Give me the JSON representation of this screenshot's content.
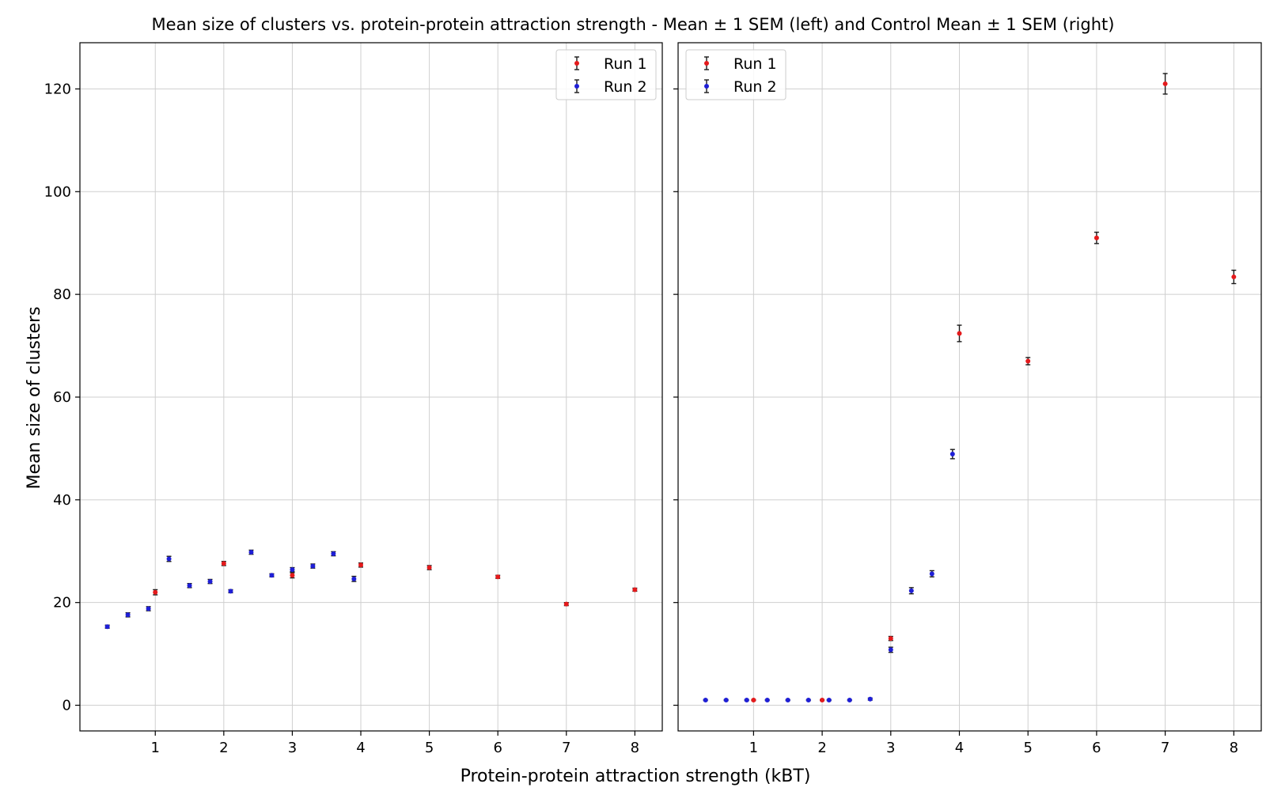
{
  "figure": {
    "title": "Mean size of clusters vs. protein-protein attraction strength - Mean ± 1 SEM (left) and Control Mean ± 1 SEM (right)",
    "xlabel": "Protein-protein attraction strength (kBT)",
    "ylabel": "Mean size of clusters"
  },
  "chart_data": [
    {
      "type": "scatter",
      "panel": "left",
      "title": "",
      "xlim": [
        -0.1,
        8.4
      ],
      "ylim": [
        -5,
        129
      ],
      "xticks": [
        1,
        2,
        3,
        4,
        5,
        6,
        7,
        8
      ],
      "yticks": [
        0,
        20,
        40,
        60,
        80,
        100,
        120
      ],
      "grid": true,
      "error_bars": "± 1 SEM",
      "legend": {
        "placement": "top-right",
        "entries": [
          "Run 1",
          "Run 2"
        ]
      },
      "series": [
        {
          "name": "Run 1",
          "color": "#e41a1c",
          "x": [
            1,
            2,
            3,
            4,
            5,
            6,
            7,
            8
          ],
          "y": [
            22.0,
            27.6,
            25.3,
            27.3,
            26.8,
            25.0,
            19.7,
            22.5
          ],
          "err": [
            0.5,
            0.4,
            0.5,
            0.4,
            0.4,
            0.3,
            0.3,
            0.3
          ]
        },
        {
          "name": "Run 2",
          "color": "#1f1fd6",
          "x": [
            0.3,
            0.6,
            0.9,
            1.2,
            1.5,
            1.8,
            2.1,
            2.4,
            2.7,
            3.0,
            3.3,
            3.6,
            3.9
          ],
          "y": [
            15.3,
            17.6,
            18.8,
            28.5,
            23.3,
            24.1,
            22.2,
            29.8,
            25.3,
            26.4,
            27.1,
            29.5,
            24.6
          ],
          "err": [
            0.3,
            0.4,
            0.4,
            0.5,
            0.4,
            0.4,
            0.3,
            0.4,
            0.3,
            0.4,
            0.4,
            0.4,
            0.5
          ]
        }
      ]
    },
    {
      "type": "scatter",
      "panel": "right",
      "title": "",
      "xlim": [
        -0.1,
        8.4
      ],
      "ylim": [
        -5,
        129
      ],
      "xticks": [
        1,
        2,
        3,
        4,
        5,
        6,
        7,
        8
      ],
      "yticks": [
        0,
        20,
        40,
        60,
        80,
        100,
        120
      ],
      "grid": true,
      "error_bars": "± 1 SEM",
      "legend": {
        "placement": "top-left",
        "entries": [
          "Run 1",
          "Run 2"
        ]
      },
      "series": [
        {
          "name": "Run 1",
          "color": "#e41a1c",
          "x": [
            1,
            2,
            3,
            4,
            5,
            6,
            7,
            8
          ],
          "y": [
            1.0,
            1.0,
            13.0,
            72.4,
            67.0,
            91.0,
            121.0,
            83.4
          ],
          "err": [
            0.1,
            0.1,
            0.4,
            1.6,
            0.7,
            1.1,
            2.0,
            1.3
          ]
        },
        {
          "name": "Run 2",
          "color": "#1f1fd6",
          "x": [
            0.3,
            0.6,
            0.9,
            1.2,
            1.5,
            1.8,
            2.1,
            2.4,
            2.7,
            3.0,
            3.3,
            3.6,
            3.9
          ],
          "y": [
            1.0,
            1.0,
            1.0,
            1.0,
            1.0,
            1.0,
            1.0,
            1.0,
            1.2,
            10.8,
            22.3,
            25.6,
            48.9
          ],
          "err": [
            0.1,
            0.1,
            0.1,
            0.1,
            0.1,
            0.1,
            0.1,
            0.1,
            0.2,
            0.5,
            0.6,
            0.6,
            0.9
          ]
        }
      ]
    }
  ]
}
